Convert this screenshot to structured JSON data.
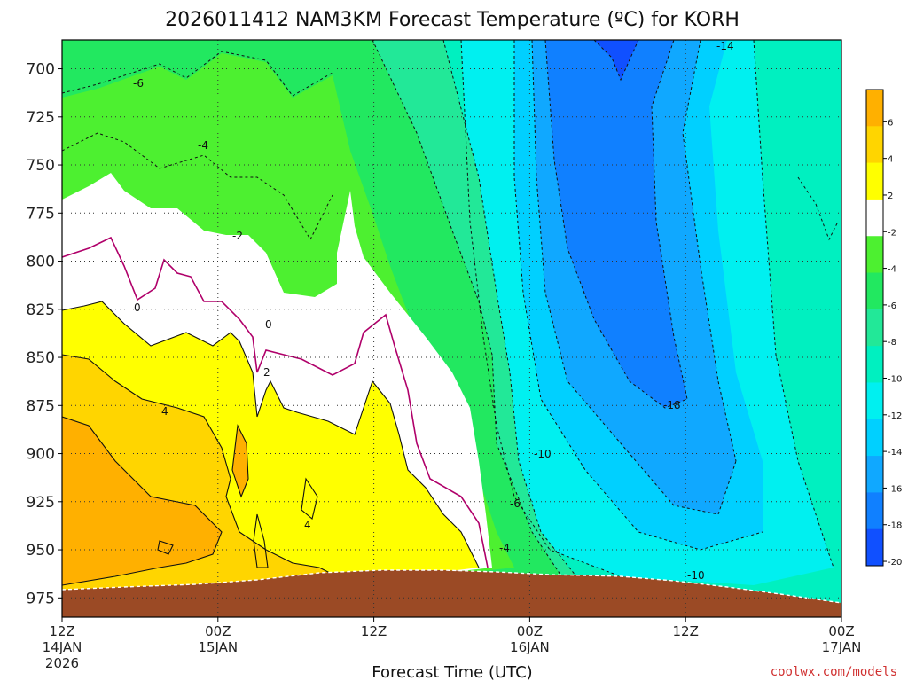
{
  "chart_data": {
    "type": "heatmap",
    "title": "2026011412 NAM3KM Forecast Temperature (ºC) for KORH",
    "xlabel": "Forecast Time (UTC)",
    "ylabel": "",
    "y_axis": {
      "ticks": [
        700,
        725,
        750,
        775,
        800,
        825,
        850,
        875,
        900,
        925,
        950,
        975
      ],
      "range": [
        685,
        985
      ],
      "inverted": true
    },
    "x_axis": {
      "ticks": [
        {
          "line1": "12Z",
          "line2": "14JAN",
          "line3": "2026"
        },
        {
          "line1": "00Z",
          "line2": "15JAN",
          "line3": ""
        },
        {
          "line1": "12Z",
          "line2": "",
          "line3": ""
        },
        {
          "line1": "00Z",
          "line2": "16JAN",
          "line3": ""
        },
        {
          "line1": "12Z",
          "line2": "",
          "line3": ""
        },
        {
          "line1": "00Z",
          "line2": "17JAN",
          "line3": ""
        }
      ],
      "range_hours": [
        0,
        60
      ]
    },
    "grid": true,
    "contour_labels": [
      "-14",
      "-6",
      "-4",
      "-2",
      "0",
      "0",
      "2",
      "4",
      "4",
      "-4",
      "-6",
      "-10",
      "-18",
      "-10"
    ],
    "colorbar": {
      "ticks": [
        "6",
        "4",
        "2",
        "-2",
        "-4",
        "-6",
        "-8",
        "-10",
        "-12",
        "-14",
        "-16",
        "-18",
        "-20"
      ],
      "colors": [
        "#ffb000",
        "#ffd500",
        "#ffff00",
        "#ffffff",
        "#4df030",
        "#22e860",
        "#22e898",
        "#00f0c0",
        "#00f0f0",
        "#00d0ff",
        "#10a8ff",
        "#1080ff",
        "#1050ff"
      ]
    },
    "terrain_color": "#9b4a25",
    "surface_pressure": [
      {
        "x": 0,
        "p": 973
      },
      {
        "x": 12,
        "p": 972
      },
      {
        "x": 24,
        "p": 968
      },
      {
        "x": 36,
        "p": 970
      },
      {
        "x": 48,
        "p": 975
      },
      {
        "x": 60,
        "p": 980
      }
    ]
  },
  "credit": "coolwx.com/models"
}
